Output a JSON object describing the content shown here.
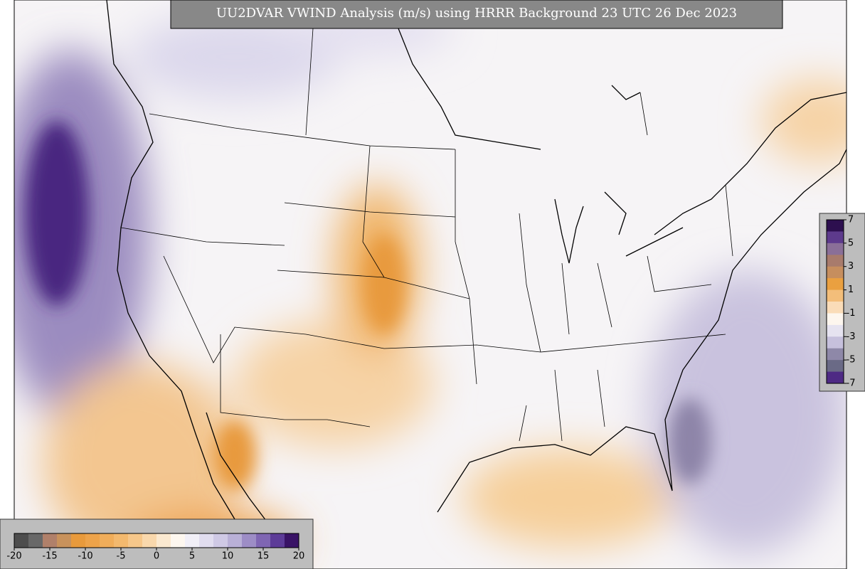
{
  "title": "UU2DVAR VWIND Analysis (m/s) using HRRR Background 23 UTC 26 Dec 2023",
  "colorbars": [
    {
      "orientation": "horizontal",
      "lim": [
        -20,
        20
      ],
      "ticks": [
        -20,
        -15,
        -10,
        -5,
        0,
        5,
        10,
        15,
        20
      ],
      "colors": [
        "#4d4d4d",
        "#686868",
        "#b0806a",
        "#c8925c",
        "#e89a3c",
        "#eda34a",
        "#f0ad5a",
        "#f3b96e",
        "#f6c78a",
        "#f9d8ac",
        "#fbe9d0",
        "#fdf7ef",
        "#f1eff7",
        "#e1ddef",
        "#cfc9e5",
        "#b9b0d7",
        "#9d8dc6",
        "#7f66b3",
        "#5d3c98",
        "#391366"
      ]
    },
    {
      "orientation": "vertical",
      "lim": [
        -7,
        7
      ],
      "ticks": [
        7,
        5,
        3,
        1,
        -1,
        -3,
        -5,
        -7
      ],
      "colors": [
        "#2d0f4f",
        "#5d3a8c",
        "#8a6f98",
        "#a87b6c",
        "#c68e5e",
        "#eaa040",
        "#f3be7a",
        "#fadcb8",
        "#fdf6ee",
        "#e6e3f0",
        "#c6c0dc",
        "#8e88a8",
        "#6a6a86",
        "#4e2a84"
      ]
    }
  ]
}
